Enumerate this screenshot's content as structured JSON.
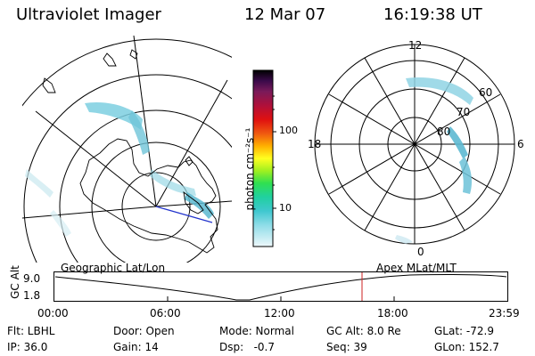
{
  "header": {
    "title": "Ultraviolet Imager",
    "date": "12 Mar 07",
    "time": "16:19:38 UT"
  },
  "colorbar": {
    "unit_label": "photon cm⁻²s⁻¹",
    "ticks": [
      "100",
      "10"
    ]
  },
  "geo_map": {
    "label": "Geographic Lat/Lon"
  },
  "polar_map": {
    "label": "Apex MLat/MLT",
    "mlt_labels": [
      "12",
      "18",
      "6",
      "0"
    ],
    "lat_labels": [
      "60",
      "70",
      "80"
    ]
  },
  "altitude_plot": {
    "ylabel": "GC Alt",
    "yticks": [
      "9.0",
      "1.8"
    ],
    "xticks": [
      "00:00",
      "06:00",
      "12:00",
      "18:00",
      "23:59"
    ],
    "current_marker_color": "#cc2222"
  },
  "info": {
    "filter": "Flt: LBHL",
    "door": "Door: Open",
    "mode": "Mode: Normal",
    "gc_alt": "GC Alt: 8.0 Re",
    "glat": "GLat: -72.9",
    "ip": "IP: 36.0",
    "gain": "Gain: 14",
    "dsp": "Dsp:   -0.7",
    "seq": "Seq: 39",
    "glon": "GLon: 152.7"
  }
}
